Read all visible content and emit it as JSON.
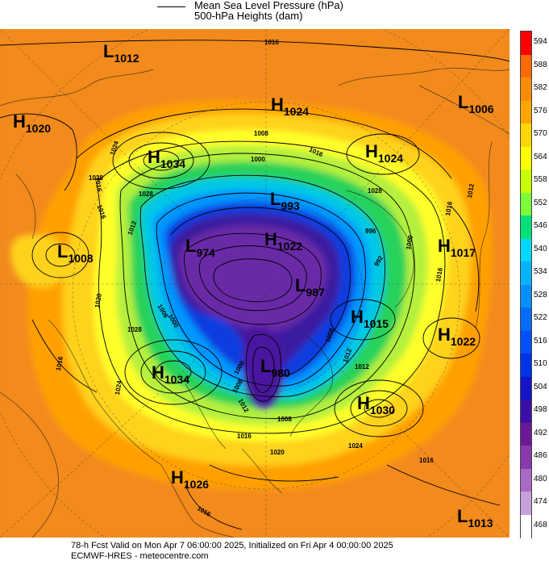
{
  "header": {
    "line1": "Mean Sea Level Pressure (hPa)",
    "line2": "500-hPa Heights (dam)"
  },
  "footer": {
    "line1": "78-h Fcst Valid on Mon Apr  7 06:00:00 2025, Initialized on Fri Apr  4 00:00:00 2025",
    "line2": "ECMWF-HRES  - meteocentre.com"
  },
  "pressure_centers": [
    {
      "type": "L",
      "value": "1012"
    },
    {
      "type": "H",
      "value": "1024"
    },
    {
      "type": "L",
      "value": "1006"
    },
    {
      "type": "H",
      "value": "1020"
    },
    {
      "type": "H",
      "value": "1034"
    },
    {
      "type": "H",
      "value": "1024"
    },
    {
      "type": "L",
      "value": "993"
    },
    {
      "type": "L",
      "value": "1008"
    },
    {
      "type": "L",
      "value": "974"
    },
    {
      "type": "H",
      "value": "1022"
    },
    {
      "type": "H",
      "value": "1017"
    },
    {
      "type": "L",
      "value": "987"
    },
    {
      "type": "H",
      "value": "1015"
    },
    {
      "type": "H",
      "value": "1022"
    },
    {
      "type": "H",
      "value": "1034"
    },
    {
      "type": "L",
      "value": "980"
    },
    {
      "type": "H",
      "value": "1030"
    },
    {
      "type": "H",
      "value": "1026"
    },
    {
      "type": "L",
      "value": "1013"
    }
  ],
  "isobar_labels": [
    "1016",
    "1024",
    "1016",
    "1028",
    "1016",
    "1008",
    "1000",
    "1016",
    "1028",
    "1012",
    "1024",
    "1016",
    "1028",
    "1016",
    "1020",
    "1024",
    "1028",
    "1012",
    "1016",
    "1012",
    "1008",
    "1000",
    "996",
    "992",
    "1000",
    "1008",
    "1020",
    "1008",
    "1012",
    "1012",
    "1000",
    "1008",
    "1016",
    "1016",
    "1016"
  ],
  "colorbar": {
    "unit": "dam",
    "levels": [
      "594",
      "588",
      "582",
      "576",
      "570",
      "564",
      "558",
      "552",
      "546",
      "540",
      "534",
      "528",
      "522",
      "516",
      "510",
      "504",
      "498",
      "492",
      "486",
      "480",
      "474",
      "468"
    ],
    "colors": [
      "#ff0000",
      "#ff6a00",
      "#ff8c00",
      "#ffa500",
      "#ffd700",
      "#ffff00",
      "#c8ff00",
      "#7cff3a",
      "#00e07a",
      "#00d8ff",
      "#00b4ff",
      "#0090ff",
      "#006cff",
      "#0050ff",
      "#0032e6",
      "#1414c8",
      "#3c10a8",
      "#6a1a96",
      "#8a3aac",
      "#a86ac4",
      "#c8a0dc",
      "#ffffff"
    ]
  }
}
